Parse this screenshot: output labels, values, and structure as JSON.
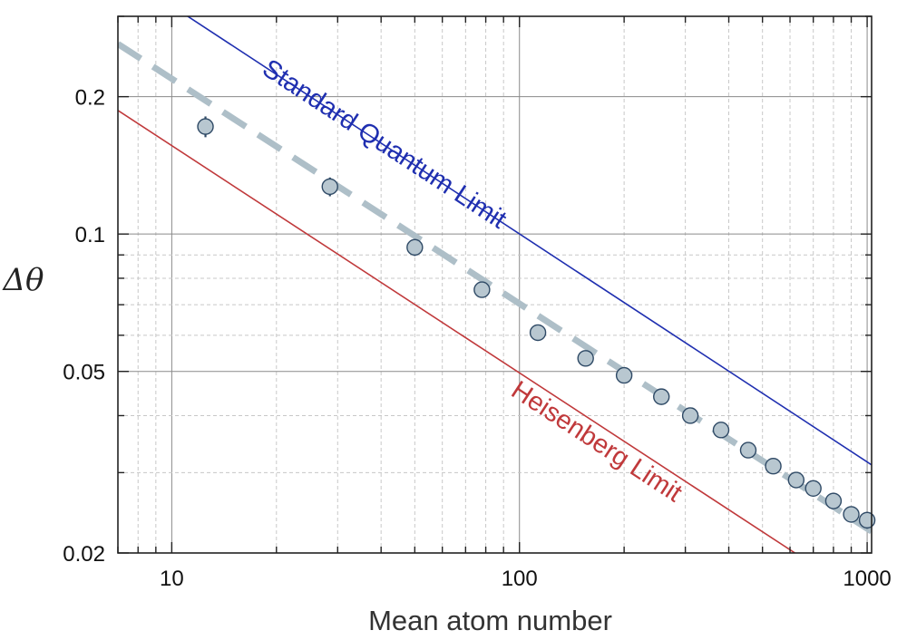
{
  "chart_data": {
    "type": "scatter",
    "xlabel": "Mean atom number",
    "ylabel": "Δθ",
    "x_scale": "log",
    "y_scale": "log",
    "xlim": [
      7,
      1030
    ],
    "ylim": [
      0.02,
      0.3
    ],
    "grid": true,
    "x_ticks": [
      {
        "value": 10,
        "label": "10"
      },
      {
        "value": 100,
        "label": "100"
      },
      {
        "value": 1000,
        "label": "1000"
      }
    ],
    "y_ticks": [
      {
        "value": 0.02,
        "label": "0.02"
      },
      {
        "value": 0.05,
        "label": "0.05"
      },
      {
        "value": 0.1,
        "label": "0.1"
      },
      {
        "value": 0.2,
        "label": "0.2"
      }
    ],
    "series": [
      {
        "kind": "points",
        "color": "#b8c7d0",
        "edge_color": "#2f4a66",
        "x": [
          12.5,
          28.5,
          50,
          78,
          113,
          155,
          200,
          256,
          310,
          380,
          455,
          537,
          625,
          700,
          800,
          900,
          1000
        ],
        "y": [
          0.172,
          0.127,
          0.0935,
          0.0755,
          0.0608,
          0.0534,
          0.049,
          0.044,
          0.04,
          0.0372,
          0.0336,
          0.031,
          0.0289,
          0.0277,
          0.026,
          0.0243,
          0.0236
        ],
        "yerr": [
          0.009,
          0.006,
          0.004,
          0.003,
          0.0025,
          0.002,
          0.0018,
          0.0016,
          0.0015,
          0.0014,
          0.0013,
          0.0012,
          0.0011,
          0.0011,
          0.001,
          0.001,
          0.001
        ]
      },
      {
        "kind": "line",
        "name": "Standard Quantum Limit",
        "color": "#1f2fb0",
        "x": [
          7,
          1030
        ],
        "y": [
          0.378,
          0.0312
        ]
      },
      {
        "kind": "line",
        "name": "Heisenberg Limit",
        "color": "#c0393b",
        "x": [
          7,
          620
        ],
        "y": [
          0.1866,
          0.02
        ]
      },
      {
        "kind": "dashed-line",
        "color": "#aebfc8",
        "x": [
          7,
          1030
        ],
        "y": [
          0.261,
          0.0223
        ]
      }
    ],
    "annotations": [
      {
        "text": "Standard Quantum Limit",
        "color": "#1f2fb0"
      },
      {
        "text": "Heisenberg Limit",
        "color": "#c0393b"
      }
    ]
  }
}
